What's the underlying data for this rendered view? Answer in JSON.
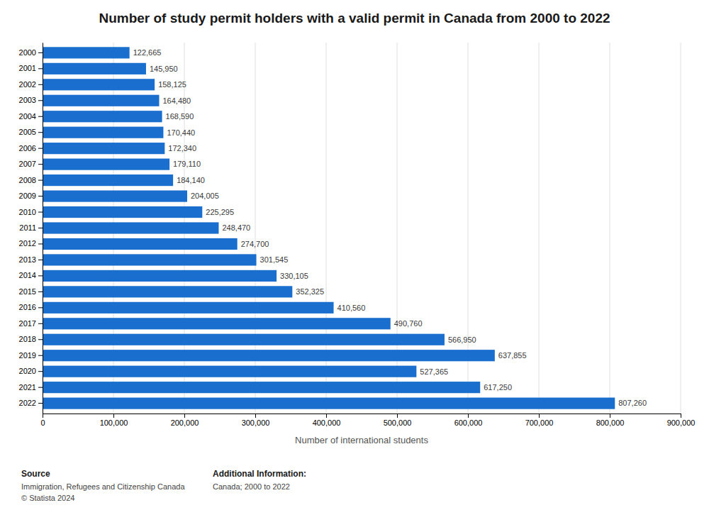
{
  "chart_data": {
    "type": "bar",
    "orientation": "horizontal",
    "title": "Number of study permit holders with a valid permit in Canada from 2000 to 2022",
    "xlabel": "Number of international students",
    "categories": [
      "2000",
      "2001",
      "2002",
      "2003",
      "2004",
      "2005",
      "2006",
      "2007",
      "2008",
      "2009",
      "2010",
      "2011",
      "2012",
      "2013",
      "2014",
      "2015",
      "2016",
      "2017",
      "2018",
      "2019",
      "2020",
      "2021",
      "2022"
    ],
    "values": [
      122665,
      145950,
      158125,
      164480,
      168590,
      170440,
      172340,
      179110,
      184140,
      204005,
      225295,
      248470,
      274700,
      301545,
      330105,
      352325,
      410560,
      490760,
      566950,
      637855,
      527365,
      617250,
      807260
    ],
    "value_labels": [
      "122,665",
      "145,950",
      "158,125",
      "164,480",
      "168,590",
      "170,440",
      "172,340",
      "179,110",
      "184,140",
      "204,005",
      "225,295",
      "248,470",
      "274,700",
      "301,545",
      "330,105",
      "352,325",
      "410,560",
      "490,760",
      "566,950",
      "637,855",
      "527,365",
      "617,250",
      "807,260"
    ],
    "data_labels": true,
    "color": "#1a6fce",
    "xlim": [
      0,
      900000
    ],
    "xticks": [
      0,
      {
        "value": 100000,
        "label": "100,000"
      },
      {
        "value": 200000,
        "label": "200,000"
      },
      {
        "value": 300000,
        "label": "300,000"
      },
      {
        "value": 400000,
        "label": "400,000"
      },
      {
        "value": 500000,
        "label": "500,000"
      },
      {
        "value": 600000,
        "label": "600,000"
      },
      {
        "value": 700000,
        "label": "700,000"
      },
      {
        "value": 800000,
        "label": "800,000"
      },
      {
        "value": 900000,
        "label": "900,000"
      }
    ],
    "grid": true,
    "annotations": [
      "Source",
      "Immigration, Refugees and Citizenship Canada",
      "© Statista 2024",
      "Additional Information:",
      "Canada; 2000 to 2022"
    ]
  }
}
